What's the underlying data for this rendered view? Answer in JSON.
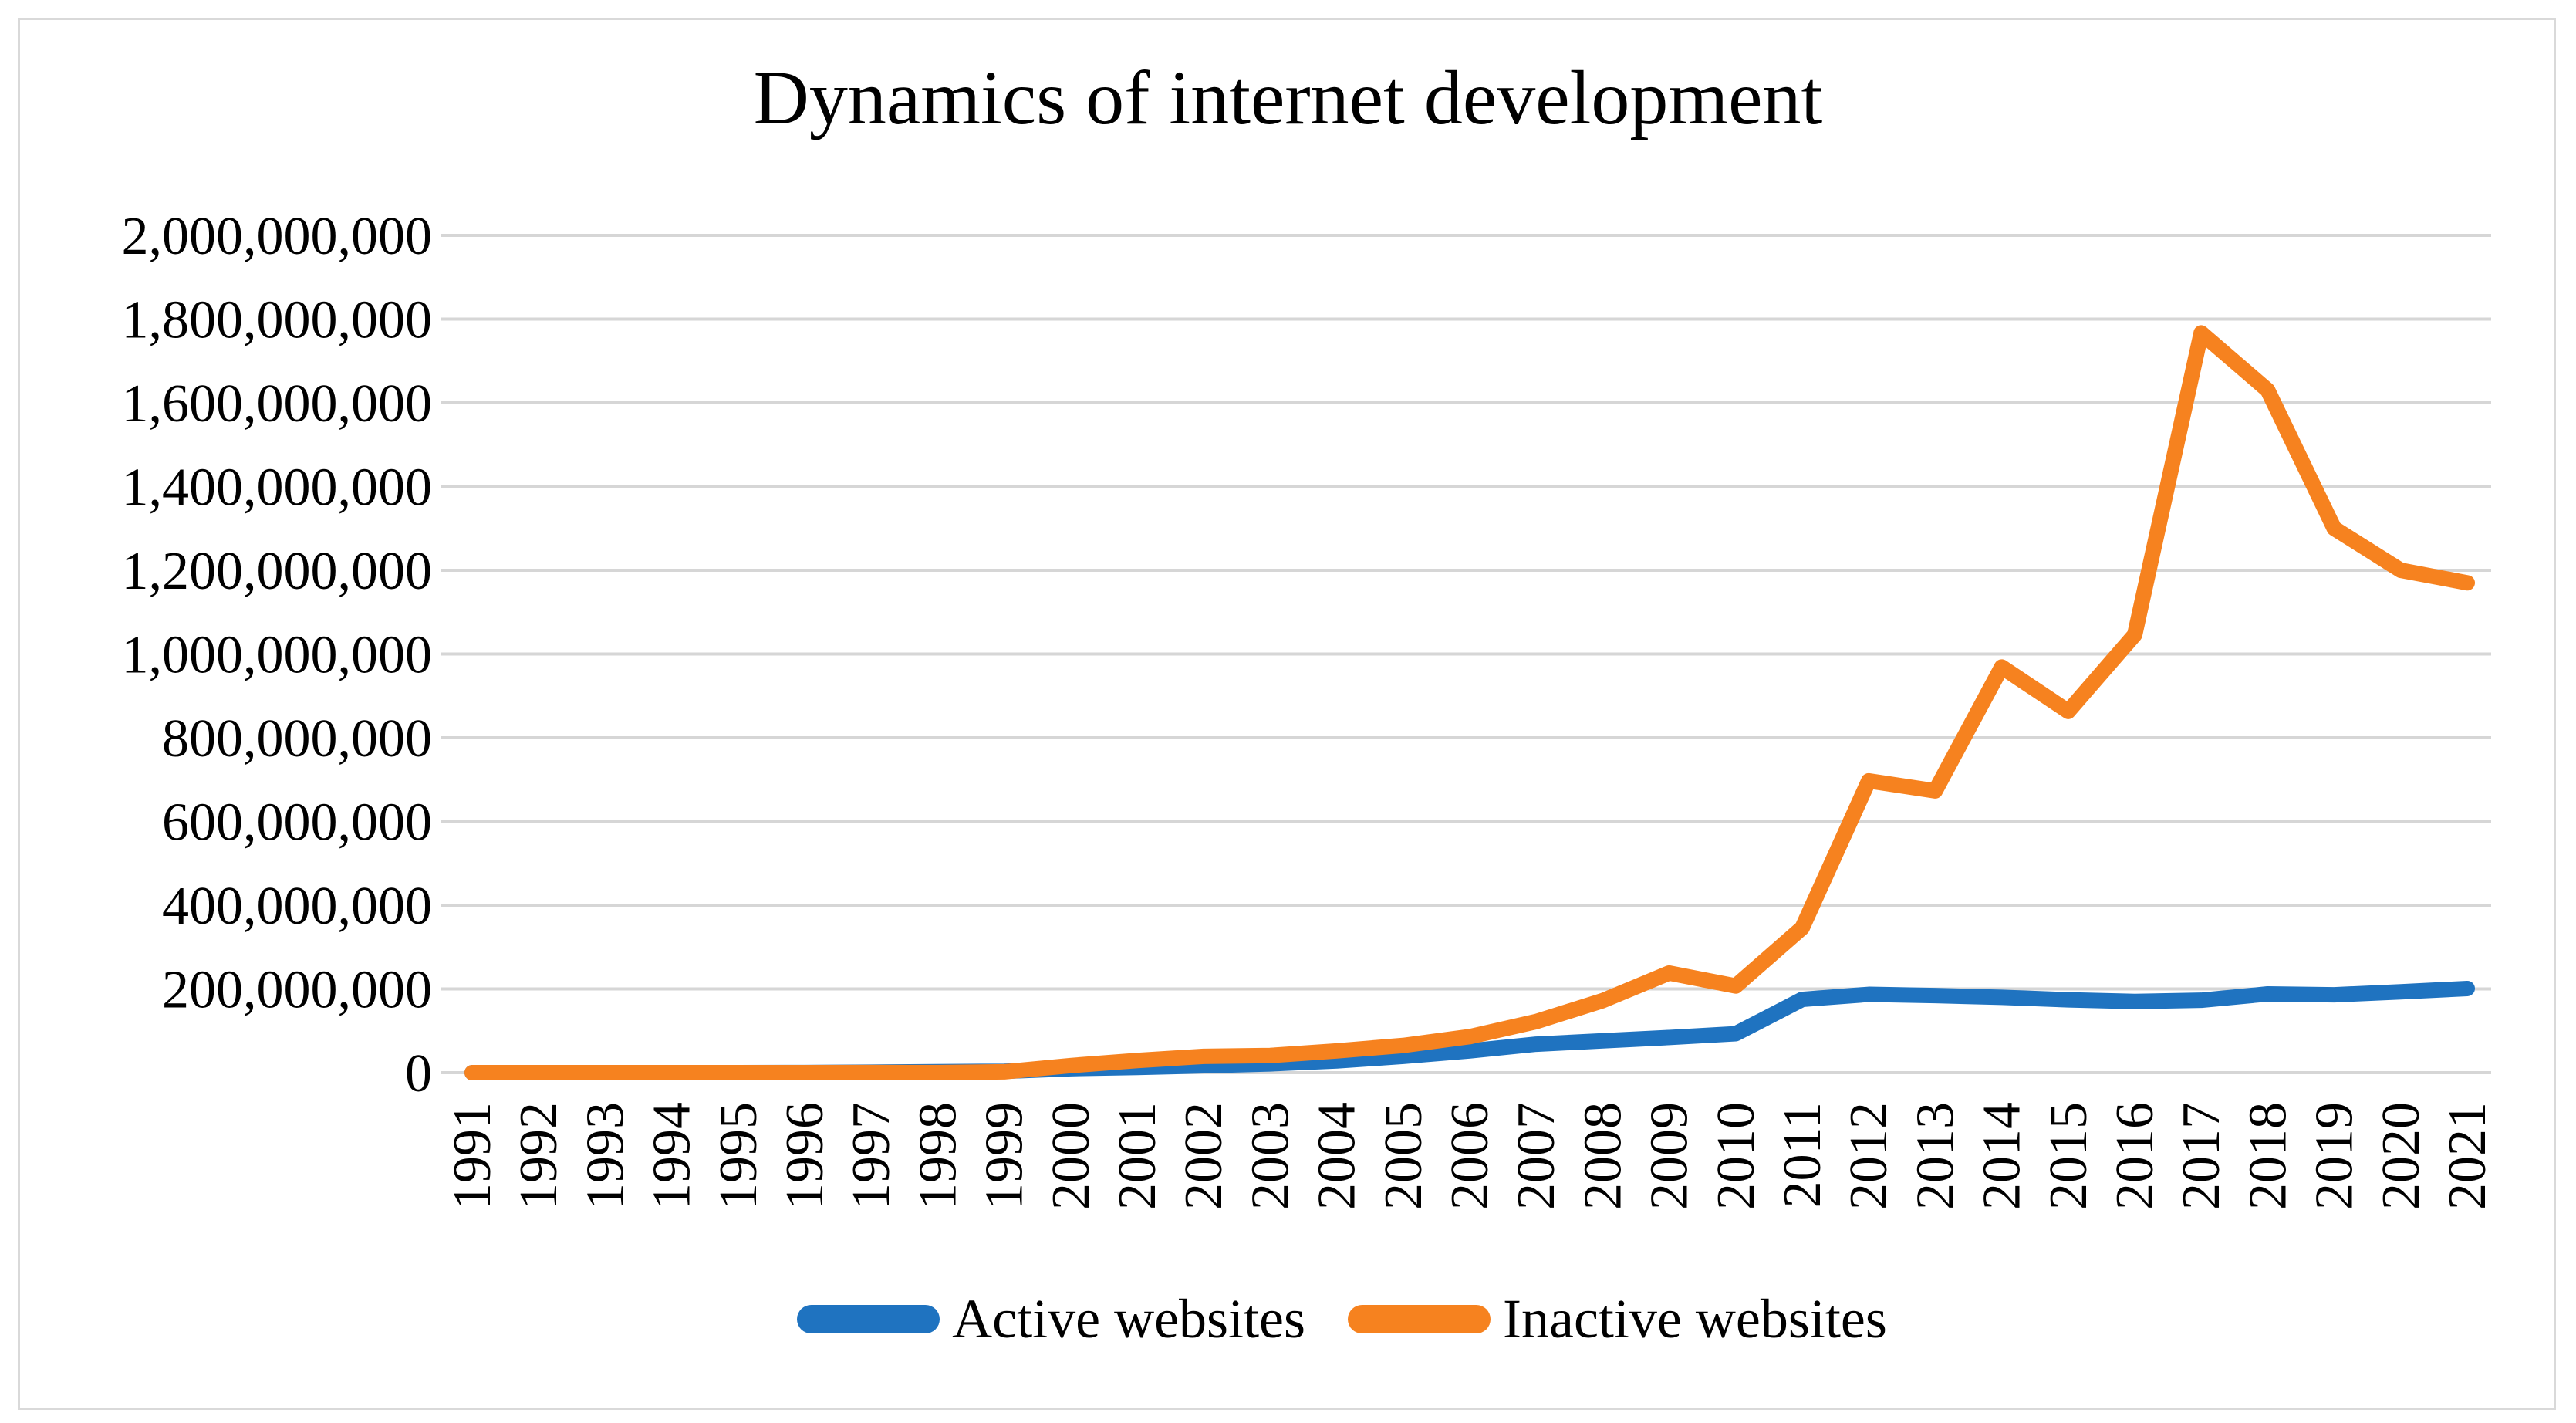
{
  "title": "Dynamics of internet development",
  "chart_data": {
    "type": "line",
    "title": "Dynamics of internet development",
    "x": [
      "1991",
      "1992",
      "1993",
      "1994",
      "1995",
      "1996",
      "1997",
      "1998",
      "1999",
      "2000",
      "2001",
      "2002",
      "2003",
      "2004",
      "2005",
      "2006",
      "2007",
      "2008",
      "2009",
      "2010",
      "2011",
      "2012",
      "2013",
      "2014",
      "2015",
      "2016",
      "2017",
      "2018",
      "2019",
      "2020",
      "2021"
    ],
    "series": [
      {
        "name": "Active websites",
        "color": "#1F73C0",
        "values": [
          1,
          10,
          130,
          2700,
          23500,
          250000,
          1100000,
          2400000,
          3200000,
          9500000,
          12500000,
          16500000,
          21000000,
          28000000,
          39000000,
          52000000,
          68000000,
          76000000,
          84000000,
          93000000,
          175000000,
          187000000,
          184000000,
          180000000,
          174000000,
          170000000,
          173000000,
          188000000,
          186000000,
          193000000,
          201000000
        ]
      },
      {
        "name": "Inactive websites",
        "color": "#F6821F",
        "values": [
          0,
          1,
          30,
          100,
          3000,
          30000,
          150000,
          300000,
          2000000,
          17000000,
          29000000,
          39000000,
          41000000,
          52000000,
          65000000,
          86000000,
          122000000,
          172000000,
          238000000,
          207000000,
          346000000,
          697000000,
          673000000,
          969000000,
          863000000,
          1046000000,
          1767000000,
          1630000000,
          1300000000,
          1200000000,
          1170000000
        ]
      }
    ],
    "ylim": [
      0,
      2000000000
    ],
    "ytick_step": 200000000,
    "ytick_labels": [
      "0",
      "200,000,000",
      "400,000,000",
      "600,000,000",
      "800,000,000",
      "1,000,000,000",
      "1,200,000,000",
      "1,400,000,000",
      "1,600,000,000",
      "1,800,000,000",
      "2,000,000,000"
    ],
    "xlabel": "",
    "ylabel": "",
    "grid": true,
    "legend_position": "bottom"
  },
  "legend": {
    "items": [
      {
        "label": "Active websites",
        "color": "#1F73C0"
      },
      {
        "label": "Inactive websites",
        "color": "#F6821F"
      }
    ]
  },
  "colors": {
    "grid": "#D6D6D6",
    "border": "#D9D9D9",
    "text": "#000000",
    "background": "#FFFFFF"
  }
}
